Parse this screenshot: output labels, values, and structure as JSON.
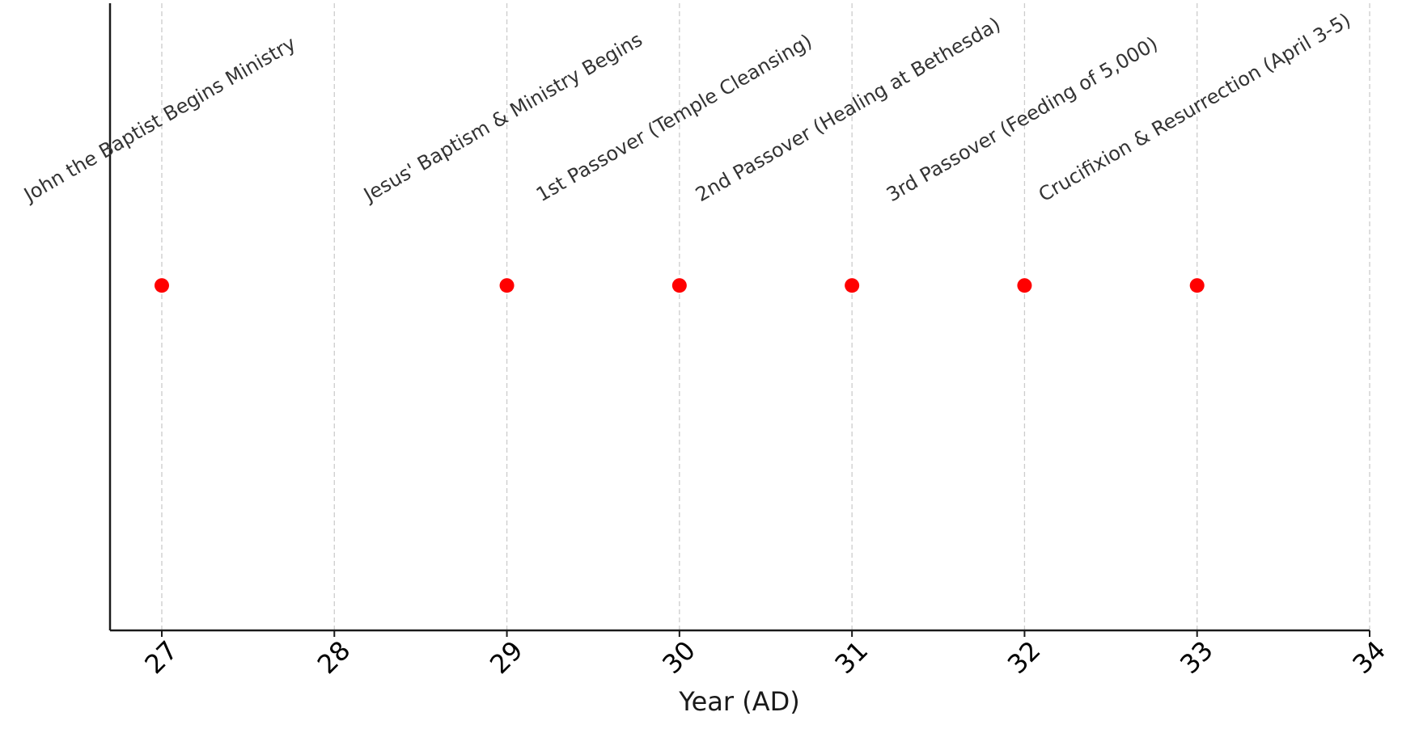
{
  "chart_data": {
    "type": "scatter",
    "title": "",
    "xlabel": "Year (AD)",
    "ylabel": "",
    "xlim": [
      26.7,
      34
    ],
    "ylim": [
      0,
      1
    ],
    "x_ticks": [
      "27",
      "28",
      "29",
      "30",
      "31",
      "32",
      "33",
      "34"
    ],
    "grid": "vertical dashed",
    "marker_color": "#ff0000",
    "grid_color": "#cccccc",
    "events": [
      {
        "year": 27,
        "label": "John the Baptist Begins Ministry"
      },
      {
        "year": 29,
        "label": "Jesus' Baptism & Ministry Begins"
      },
      {
        "year": 30,
        "label": "1st Passover (Temple Cleansing)"
      },
      {
        "year": 31,
        "label": "2nd Passover (Healing at Bethesda)"
      },
      {
        "year": 32,
        "label": "3rd Passover (Feeding of 5,000)"
      },
      {
        "year": 33,
        "label": "Crucifixion & Resurrection (April 3-5)"
      }
    ]
  }
}
